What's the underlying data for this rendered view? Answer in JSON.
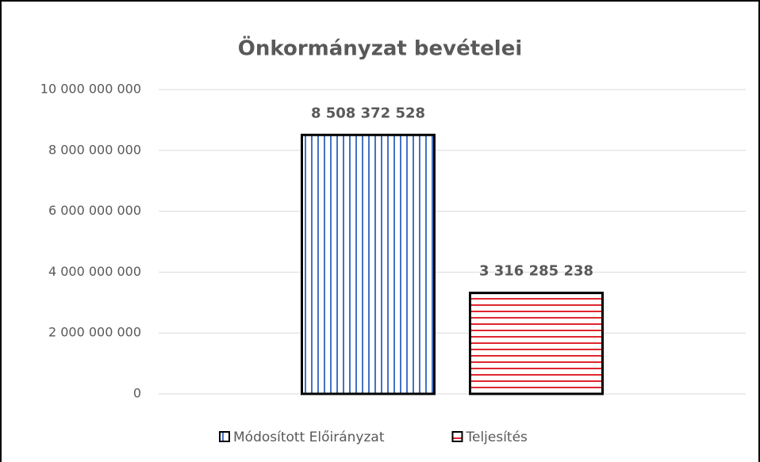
{
  "chart_data": {
    "type": "bar",
    "title": "Önkormányzat bevételei",
    "categories": [
      null
    ],
    "series": [
      {
        "name": "Módosított Előirányzat",
        "color": "#4472c4",
        "hatch": "vertical",
        "values": [
          8508372528
        ],
        "value_labels": [
          "8 508 372 528"
        ]
      },
      {
        "name": "Teljesítés",
        "color": "#e0262e",
        "hatch": "horizontal",
        "values": [
          3316285238
        ],
        "value_labels": [
          "3 316 285 238"
        ]
      }
    ],
    "ylim": [
      0,
      10000000000
    ],
    "yticks": [
      0,
      {
        "value": 2000000000,
        "label": "2 000 000 000"
      },
      {
        "value": 4000000000,
        "label": "4 000 000 000"
      },
      {
        "value": 6000000000,
        "label": "6 000 000 000"
      },
      {
        "value": 8000000000,
        "label": "8 000 000 000"
      },
      {
        "value": 10000000000,
        "label": "10 000 000 000"
      }
    ],
    "grid": true,
    "legend": "bottom"
  }
}
